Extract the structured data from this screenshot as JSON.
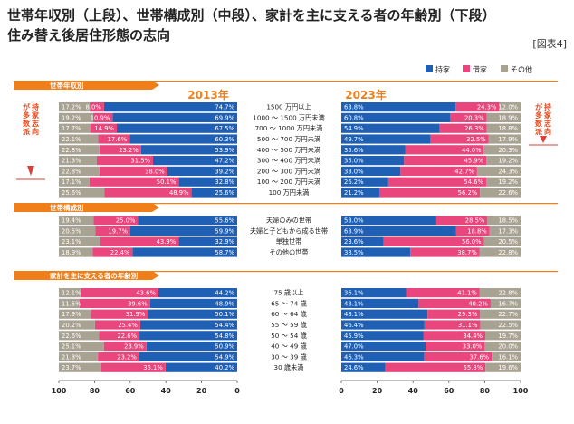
{
  "title_line1": "世帯年収別（上段）、世帯構成別（中段）、家計を主に支える者の年齢別（下段）",
  "title_line2": "住み替え後居住形態の志向",
  "figure_label": "[図表4]",
  "colors": {
    "own": "#1f5fb4",
    "rent": "#e8467c",
    "other": "#a8a293",
    "section": "#f07f1a",
    "accent": "#e84a1a",
    "arrow": "#d8403a"
  },
  "chart_data": {
    "type": "bar",
    "orientation": "horizontal-stacked",
    "legend": [
      "持家",
      "借家",
      "その他"
    ],
    "years": [
      "2013年",
      "2023年"
    ],
    "side_note": "持家志向が多数派",
    "x_axis_left_ticks": [
      "100",
      "80",
      "60",
      "40",
      "20",
      "0"
    ],
    "x_axis_right_ticks": [
      "0",
      "20",
      "40",
      "60",
      "80",
      "100"
    ],
    "sections": [
      {
        "title": "世帯年収別",
        "categories": [
          "1500 万円以上",
          "1000 ～ 1500 万円未満",
          "700 ～ 1000 万円未満",
          "500 ～ 700 万円未満",
          "400 ～ 500 万円未満",
          "300 ～ 400 万円未満",
          "200 ～ 300 万円未満",
          "100 ～ 200 万円未満",
          "100 万円未満"
        ],
        "y2013": {
          "own": [
            74.7,
            69.9,
            67.5,
            60.3,
            53.9,
            47.2,
            39.2,
            32.8,
            25.6
          ],
          "rent": [
            8.0,
            10.9,
            14.9,
            17.6,
            23.2,
            31.5,
            38.0,
            50.1,
            48.9
          ],
          "other": [
            17.2,
            19.2,
            17.7,
            22.1,
            22.8,
            21.3,
            22.8,
            17.1,
            25.6
          ]
        },
        "y2023": {
          "own": [
            63.8,
            60.8,
            54.9,
            49.7,
            35.6,
            35.0,
            33.0,
            26.2,
            21.2
          ],
          "rent": [
            24.3,
            20.3,
            26.3,
            32.5,
            44.0,
            45.9,
            42.7,
            54.6,
            56.2
          ],
          "other": [
            12.0,
            18.9,
            18.8,
            17.9,
            20.3,
            19.2,
            24.3,
            19.2,
            22.6
          ]
        }
      },
      {
        "title": "世帯構成別",
        "categories": [
          "夫婦のみの世帯",
          "夫婦と子どもから成る世帯",
          "単独世帯",
          "その他の世帯"
        ],
        "y2013": {
          "own": [
            55.6,
            59.9,
            32.9,
            58.7
          ],
          "rent": [
            25.0,
            19.7,
            43.9,
            22.4
          ],
          "other": [
            19.4,
            20.5,
            23.1,
            18.9
          ]
        },
        "y2023": {
          "own": [
            53.0,
            63.9,
            23.6,
            38.5
          ],
          "rent": [
            28.5,
            18.8,
            56.0,
            38.7
          ],
          "other": [
            18.5,
            17.3,
            20.5,
            22.8
          ]
        }
      },
      {
        "title": "家計を主に支える者の年齢別",
        "categories": [
          "75 歳以上",
          "65 ～ 74 歳",
          "60 ～ 64 歳",
          "55 ～ 59 歳",
          "50 ～ 54 歳",
          "40 ～ 49 歳",
          "30 ～ 39 歳",
          "30 歳未満"
        ],
        "y2013": {
          "own": [
            44.2,
            48.9,
            50.1,
            54.4,
            54.8,
            50.9,
            54.9,
            40.2
          ],
          "rent": [
            43.6,
            39.6,
            31.9,
            25.4,
            22.6,
            23.9,
            23.2,
            36.1
          ],
          "other": [
            12.1,
            11.5,
            17.9,
            20.2,
            22.6,
            25.1,
            21.8,
            23.7
          ]
        },
        "y2023": {
          "own": [
            36.1,
            43.1,
            48.1,
            46.4,
            45.9,
            47.0,
            46.3,
            24.6
          ],
          "rent": [
            41.1,
            40.2,
            29.3,
            31.1,
            34.4,
            33.0,
            37.6,
            55.8
          ],
          "other": [
            22.8,
            16.7,
            22.7,
            22.5,
            19.7,
            20.0,
            16.1,
            19.6
          ]
        }
      }
    ]
  }
}
